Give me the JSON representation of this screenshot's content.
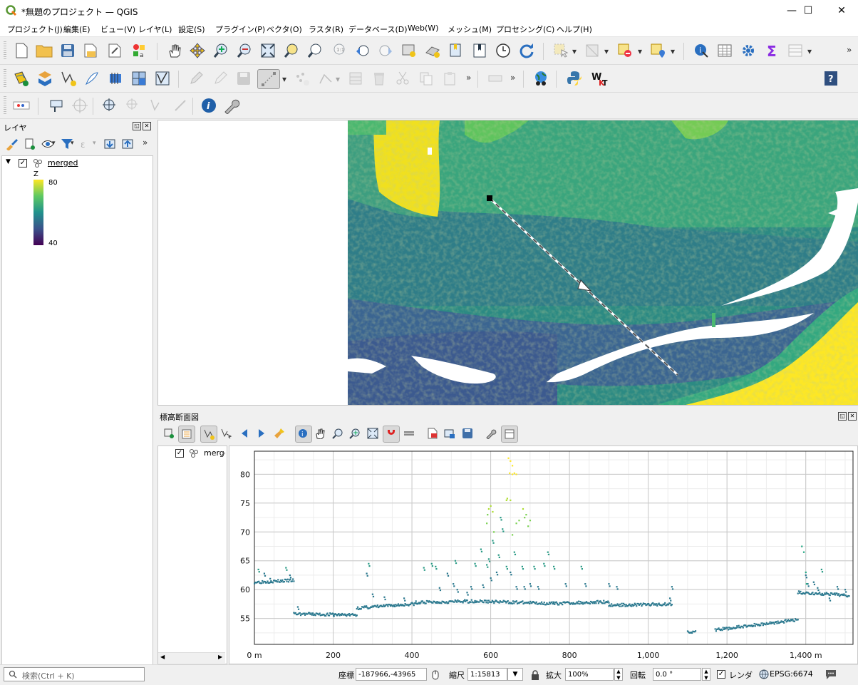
{
  "window": {
    "title": "*無題のプロジェクト — QGIS",
    "minimize": "—",
    "maximize": "☐",
    "close": "✕"
  },
  "menu": [
    "プロジェクト(J)",
    "編集(E)",
    "ビュー(V)",
    "レイヤ(L)",
    "設定(S)",
    "プラグイン(P)",
    "ベクタ(O)",
    "ラスタ(R)",
    "データベース(D)",
    "Web(W)",
    "メッシュ(M)",
    "プロセシング(C)",
    "ヘルプ(H)"
  ],
  "layers_panel": {
    "title": "レイヤ",
    "layer": {
      "name": "merged",
      "checked": true
    },
    "legend": {
      "attribute": "Z",
      "max": "80",
      "min": "40"
    }
  },
  "profile_panel": {
    "title": "標高断面図",
    "layer_label": "merged",
    "checked": true
  },
  "chart_data": {
    "type": "scatter",
    "xlabel": "",
    "ylabel": "",
    "x_unit": "m",
    "xlim": [
      0,
      1520
    ],
    "ylim": [
      50.5,
      84
    ],
    "x_ticks": [
      "0 m",
      "200",
      "400",
      "600",
      "800",
      "1,000",
      "1,200",
      "1,400 m"
    ],
    "x_tick_values": [
      0,
      200,
      400,
      600,
      800,
      1000,
      1200,
      1400
    ],
    "y_ticks": [
      "55",
      "60",
      "65",
      "70",
      "75",
      "80"
    ],
    "y_tick_values": [
      55,
      60,
      65,
      70,
      75,
      80
    ],
    "grid": true,
    "colors": {
      "low": "#2a788e",
      "mid": "#22a884",
      "high": "#fde725"
    },
    "ground_segments": [
      {
        "x": [
          0,
          100
        ],
        "y": [
          61.3,
          61.6
        ]
      },
      {
        "x": [
          100,
          260
        ],
        "y": [
          55.8,
          55.6
        ]
      },
      {
        "x": [
          260,
          420
        ],
        "y": [
          56.8,
          57.6
        ]
      },
      {
        "x": [
          420,
          560
        ],
        "y": [
          57.8,
          58.0
        ]
      },
      {
        "x": [
          560,
          760
        ],
        "y": [
          58.0,
          57.6
        ]
      },
      {
        "x": [
          760,
          900
        ],
        "y": [
          57.6,
          57.9
        ]
      },
      {
        "x": [
          900,
          1060
        ],
        "y": [
          57.3,
          57.5
        ]
      },
      {
        "x": [
          1100,
          1120
        ],
        "y": [
          52.8,
          52.6
        ]
      },
      {
        "x": [
          1170,
          1380
        ],
        "y": [
          53.0,
          54.8
        ]
      },
      {
        "x": [
          1380,
          1510
        ],
        "y": [
          59.5,
          59.0
        ]
      }
    ],
    "scattered_points": [
      [
        10,
        63.5
      ],
      [
        25,
        62.8
      ],
      [
        40,
        61.9
      ],
      [
        80,
        63.8
      ],
      [
        90,
        62.5
      ],
      [
        110,
        57.0
      ],
      [
        200,
        55.8
      ],
      [
        285,
        62.8
      ],
      [
        290,
        64.5
      ],
      [
        300,
        59.2
      ],
      [
        330,
        58.7
      ],
      [
        380,
        58.5
      ],
      [
        410,
        58.0
      ],
      [
        430,
        63.8
      ],
      [
        450,
        64.5
      ],
      [
        460,
        64.0
      ],
      [
        470,
        60.3
      ],
      [
        490,
        62.8
      ],
      [
        505,
        61.0
      ],
      [
        510,
        65.0
      ],
      [
        515,
        60.0
      ],
      [
        540,
        59.5
      ],
      [
        550,
        60.5
      ],
      [
        560,
        64.5
      ],
      [
        575,
        67.0
      ],
      [
        580,
        60.8
      ],
      [
        590,
        64.3
      ],
      [
        595,
        65.3
      ],
      [
        600,
        62.0
      ],
      [
        605,
        68.5
      ],
      [
        615,
        63.0
      ],
      [
        620,
        66.0
      ],
      [
        625,
        72.5
      ],
      [
        630,
        70.5
      ],
      [
        640,
        64.0
      ],
      [
        650,
        63.0
      ],
      [
        660,
        66.5
      ],
      [
        665,
        60.5
      ],
      [
        680,
        64.0
      ],
      [
        685,
        60.5
      ],
      [
        700,
        61.0
      ],
      [
        710,
        64.0
      ],
      [
        720,
        60.5
      ],
      [
        735,
        64.5
      ],
      [
        745,
        66.5
      ],
      [
        760,
        64.0
      ],
      [
        790,
        61.0
      ],
      [
        830,
        64.0
      ],
      [
        840,
        61.0
      ],
      [
        900,
        61.0
      ],
      [
        920,
        60.5
      ],
      [
        1060,
        60.5
      ],
      [
        1055,
        58.5
      ],
      [
        1400,
        62.5
      ],
      [
        1405,
        61.0
      ],
      [
        1420,
        61.3
      ],
      [
        1430,
        60.3
      ],
      [
        1440,
        63.5
      ],
      [
        1460,
        58.5
      ],
      [
        1480,
        60.5
      ],
      [
        1500,
        60.0
      ]
    ],
    "peak_points": [
      [
        590,
        71.5
      ],
      [
        592,
        73.0
      ],
      [
        595,
        74.0
      ],
      [
        600,
        74.5
      ],
      [
        605,
        73.5
      ],
      [
        640,
        75.5
      ],
      [
        642,
        75.8
      ],
      [
        650,
        75.5
      ],
      [
        682,
        74.0
      ],
      [
        686,
        72.5
      ],
      [
        690,
        73.0
      ],
      [
        695,
        71.0
      ],
      [
        700,
        72.0
      ],
      [
        655,
        69.5
      ],
      [
        665,
        71.5
      ],
      [
        672,
        72.0
      ],
      [
        608,
        70.0
      ]
    ],
    "top_points": [
      [
        645,
        82.8
      ],
      [
        650,
        82.3
      ],
      [
        655,
        81.5
      ],
      [
        648,
        80.2
      ],
      [
        655,
        80.0
      ],
      [
        660,
        80.2
      ],
      [
        665,
        80.0
      ]
    ],
    "rise_points": [
      [
        1390,
        67.5
      ],
      [
        1395,
        66.5
      ],
      [
        1400,
        63.0
      ],
      [
        1402,
        61.0
      ]
    ]
  },
  "statusbar": {
    "search_placeholder": "検索(Ctrl + K)",
    "coord_label": "座標",
    "coord_value": "-187966,-43965",
    "scale_label": "縮尺",
    "scale_value": "1:15813",
    "magnify_label": "拡大",
    "magnify_value": "100%",
    "rotation_label": "回転",
    "rotation_value": "0.0 °",
    "render_label": "レンダ",
    "render_checked": true,
    "crs": "EPSG:6674"
  }
}
